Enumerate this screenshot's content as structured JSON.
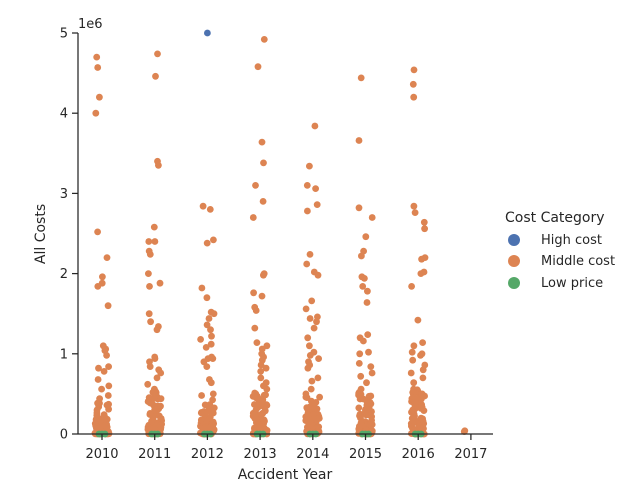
{
  "chart_data": {
    "type": "scatter",
    "subtype": "strip",
    "xlabel": "Accident Year",
    "ylabel": "All Costs",
    "y_offset_text": "1e6",
    "categories": [
      "2010",
      "2011",
      "2012",
      "2013",
      "2014",
      "2015",
      "2016",
      "2017"
    ],
    "ylim": [
      0,
      5000000
    ],
    "yticks": [
      0,
      1000000,
      2000000,
      3000000,
      4000000,
      5000000
    ],
    "ytick_labels": [
      "0",
      "1",
      "2",
      "3",
      "4",
      "5"
    ],
    "grid": false,
    "legend": {
      "title": "Cost Category",
      "placement": "right",
      "entries": [
        "High cost",
        "Middle cost",
        "Low price"
      ]
    },
    "series": [
      {
        "name": "High cost",
        "color": "#4c72b0",
        "points": [
          [
            "2012",
            5000000
          ]
        ]
      },
      {
        "name": "Middle cost",
        "color": "#dd8452",
        "outliers": {
          "2010": [
            4700000,
            4570000,
            4200000,
            4000000,
            2520000,
            2200000,
            1960000,
            1880000,
            1840000,
            1600000,
            1100000,
            1060000,
            1040000,
            980000,
            840000,
            820000,
            780000,
            680000,
            600000,
            560000,
            480000,
            440000
          ],
          "2011": [
            4740000,
            4460000,
            3400000,
            3350000,
            2580000,
            2400000,
            2400000,
            2280000,
            2240000,
            2000000,
            1880000,
            1840000,
            1500000,
            1400000,
            1340000,
            1300000,
            960000,
            940000,
            900000,
            840000,
            800000,
            760000,
            700000,
            620000,
            560000,
            520000,
            480000
          ],
          "2012": [
            2840000,
            2800000,
            2420000,
            2380000,
            1820000,
            1700000,
            1520000,
            1500000,
            1440000,
            1360000,
            1300000,
            1220000,
            1180000,
            1120000,
            1080000,
            960000,
            940000,
            940000,
            900000,
            840000,
            680000,
            640000,
            500000,
            480000
          ],
          "2013": [
            4920000,
            4580000,
            3640000,
            3380000,
            3100000,
            2900000,
            2700000,
            2000000,
            1980000,
            1760000,
            1720000,
            1580000,
            1540000,
            1320000,
            1140000,
            1100000,
            1060000,
            1000000,
            960000,
            920000,
            860000,
            820000,
            780000,
            700000,
            640000,
            600000,
            560000,
            500000
          ],
          "2014": [
            3840000,
            3340000,
            3100000,
            3060000,
            2860000,
            2780000,
            2240000,
            2120000,
            2020000,
            1980000,
            1660000,
            1560000,
            1460000,
            1440000,
            1400000,
            1320000,
            1200000,
            1100000,
            1020000,
            980000,
            940000,
            900000,
            860000,
            820000,
            700000,
            660000,
            560000,
            500000
          ],
          "2015": [
            4440000,
            3660000,
            2820000,
            2700000,
            2460000,
            2280000,
            2220000,
            1960000,
            1940000,
            1840000,
            1780000,
            1640000,
            1240000,
            1200000,
            1160000,
            1020000,
            1000000,
            880000,
            840000,
            760000,
            720000,
            640000,
            560000,
            520000
          ],
          "2016": [
            4540000,
            4360000,
            4200000,
            2840000,
            2760000,
            2640000,
            2560000,
            2200000,
            2180000,
            2020000,
            2000000,
            1840000,
            1420000,
            1140000,
            1100000,
            1020000,
            1000000,
            980000,
            920000,
            860000,
            800000,
            760000,
            700000,
            640000,
            560000,
            500000
          ],
          "2017": [
            40000,
            30000
          ]
        },
        "dense_range": {
          "2010": [
            0,
            420000
          ],
          "2011": [
            0,
            560000
          ],
          "2012": [
            0,
            460000
          ],
          "2013": [
            0,
            520000
          ],
          "2014": [
            0,
            480000
          ],
          "2015": [
            0,
            520000
          ],
          "2016": [
            0,
            560000
          ]
        }
      },
      {
        "name": "Low price",
        "color": "#55a868",
        "points": [
          [
            "2010",
            0
          ],
          [
            "2011",
            0
          ],
          [
            "2012",
            0
          ],
          [
            "2013",
            0
          ],
          [
            "2014",
            0
          ],
          [
            "2015",
            0
          ],
          [
            "2016",
            0
          ]
        ]
      }
    ]
  }
}
